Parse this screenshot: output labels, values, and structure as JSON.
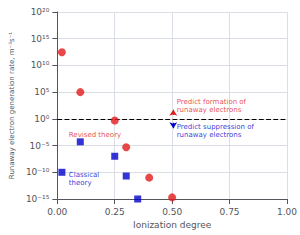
{
  "chart_data": {
    "type": "scatter",
    "xlabel": "Ionization degree",
    "ylabel": "Runaway electron generation rate, m⁻³s⁻¹",
    "log": "y",
    "grid": true,
    "xlim": [
      0.0,
      1.0
    ],
    "xticks": [
      {
        "value": 0.0,
        "label": "0.00"
      },
      0.25,
      {
        "value": 0.5,
        "label": "0.50"
      },
      0.75,
      {
        "value": 1.0,
        "label": "1.00"
      }
    ],
    "ylim": [
      1e-15,
      1e+20
    ],
    "yticks": [
      {
        "value": 1e-15,
        "label": "10⁻¹⁵"
      },
      {
        "value": 1e-10,
        "label": "10⁻¹⁰"
      },
      {
        "value": 1e-05,
        "label": "10⁻⁵"
      },
      {
        "value": 1,
        "label": "10⁰"
      },
      {
        "value": 100000.0,
        "label": "10⁵"
      },
      {
        "value": 10000000000.0,
        "label": "10¹⁰"
      },
      {
        "value": 1000000000000000.0,
        "label": "10¹⁵"
      },
      {
        "value": 1e+20,
        "label": "10²⁰"
      }
    ],
    "series": [
      {
        "color": "#e31a1c",
        "marker": "circle",
        "x": [
          0.02,
          0.1,
          0.25,
          0.3,
          0.4,
          0.5
        ],
        "values": [
          3000000000000.0,
          100000.0,
          0.5,
          5e-06,
          1e-11,
          2e-15
        ]
      },
      {
        "color": "#0000cc",
        "marker": "square",
        "x": [
          0.02,
          0.1,
          0.25,
          0.3,
          0.35
        ],
        "values": [
          1e-10,
          5e-05,
          1e-07,
          2e-11,
          1e-15
        ]
      }
    ],
    "reference_lines": [
      {
        "y": 1.0,
        "color": "#000000",
        "line_style": "dashed"
      }
    ],
    "annotations": [
      {
        "text": "Revised theory",
        "x": 0.05,
        "y": 0.001,
        "color": "#e31a1c"
      },
      {
        "text": "Classical\ntheory",
        "x": 0.05,
        "y": 5e-12,
        "color": "#0000cc"
      },
      {
        "text": "Predict formation of\nrunaway electrons",
        "x": 0.52,
        "y": 300.0,
        "color": "#e31a1c"
      },
      {
        "text": "Predict suppression of\nrunaway electrons",
        "x": 0.52,
        "y": 0.005,
        "color": "#0000cc"
      }
    ],
    "arrows": [
      {
        "x": 0.505,
        "y_start": 5.0,
        "y_end": 50.0,
        "color": "#e31a1c"
      },
      {
        "x": 0.505,
        "y_start": 0.18,
        "y_end": 0.018,
        "color": "#0000cc"
      }
    ]
  }
}
